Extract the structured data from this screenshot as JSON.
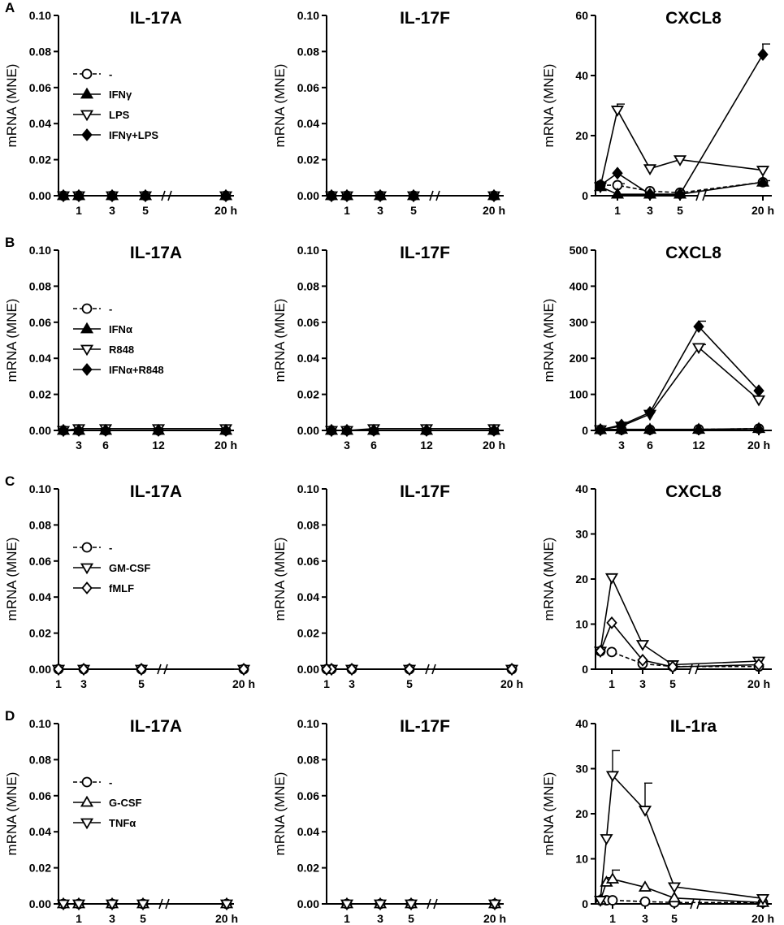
{
  "figure": {
    "rows": [
      {
        "label": "A",
        "legend": [
          "-",
          "IFNγ",
          "LPS",
          "IFNγ+LPS"
        ],
        "panels": [
          {
            "title": "IL-17A",
            "ylabel": "mRNA (MNE)",
            "yticks": [
              "0.00",
              "0.02",
              "0.04",
              "0.06",
              "0.08",
              "0.10"
            ],
            "xticks": [
              "1",
              "3",
              "5",
              "20 h"
            ]
          },
          {
            "title": "IL-17F",
            "ylabel": "mRNA (MNE)",
            "yticks": [
              "0.00",
              "0.02",
              "0.04",
              "0.06",
              "0.08",
              "0.10"
            ],
            "xticks": [
              "1",
              "3",
              "5",
              "20 h"
            ]
          },
          {
            "title": "CXCL8",
            "ylabel": "mRNA (MNE)",
            "yticks": [
              "0",
              "20",
              "40",
              "60"
            ],
            "xticks": [
              "1",
              "3",
              "5",
              "20 h"
            ]
          }
        ]
      },
      {
        "label": "B",
        "legend": [
          "-",
          "IFNα",
          "R848",
          "IFNα+R848"
        ],
        "panels": [
          {
            "title": "IL-17A",
            "ylabel": "mRNA (MNE)",
            "yticks": [
              "0.00",
              "0.02",
              "0.04",
              "0.06",
              "0.08",
              "0.10"
            ],
            "xticks": [
              "3",
              "6",
              "12",
              "20 h"
            ]
          },
          {
            "title": "IL-17F",
            "ylabel": "mRNA (MNE)",
            "yticks": [
              "0.00",
              "0.02",
              "0.04",
              "0.06",
              "0.08",
              "0.10"
            ],
            "xticks": [
              "3",
              "6",
              "12",
              "20 h"
            ]
          },
          {
            "title": "CXCL8",
            "ylabel": "mRNA (MNE)",
            "yticks": [
              "0",
              "100",
              "200",
              "300",
              "400",
              "500"
            ],
            "xticks": [
              "3",
              "6",
              "12",
              "20 h"
            ]
          }
        ]
      },
      {
        "label": "C",
        "legend": [
          "-",
          "GM-CSF",
          "fMLF"
        ],
        "panels": [
          {
            "title": "IL-17A",
            "ylabel": "mRNA (MNE)",
            "yticks": [
              "0.00",
              "0.02",
              "0.04",
              "0.06",
              "0.08",
              "0.10"
            ],
            "xticks": [
              "1",
              "3",
              "5",
              "20 h"
            ]
          },
          {
            "title": "IL-17F",
            "ylabel": "mRNA (MNE)",
            "yticks": [
              "0.00",
              "0.02",
              "0.04",
              "0.06",
              "0.08",
              "0.10"
            ],
            "xticks": [
              "1",
              "3",
              "5",
              "20 h"
            ]
          },
          {
            "title": "CXCL8",
            "ylabel": "mRNA (MNE)",
            "yticks": [
              "0",
              "10",
              "20",
              "30",
              "40"
            ],
            "xticks": [
              "1",
              "3",
              "5",
              "20 h"
            ]
          }
        ]
      },
      {
        "label": "D",
        "legend": [
          "-",
          "G-CSF",
          "TNFα"
        ],
        "panels": [
          {
            "title": "IL-17A",
            "ylabel": "mRNA (MNE)",
            "yticks": [
              "0.00",
              "0.02",
              "0.04",
              "0.06",
              "0.08",
              "0.10"
            ],
            "xticks": [
              "1",
              "3",
              "5",
              "20 h"
            ]
          },
          {
            "title": "IL-17F",
            "ylabel": "mRNA (MNE)",
            "yticks": [
              "0.00",
              "0.02",
              "0.04",
              "0.06",
              "0.08",
              "0.10"
            ],
            "xticks": [
              "1",
              "3",
              "5",
              "20 h"
            ]
          },
          {
            "title": "IL-1ra",
            "ylabel": "mRNA (MNE)",
            "yticks": [
              "0",
              "10",
              "20",
              "30",
              "40"
            ],
            "xticks": [
              "1",
              "3",
              "5",
              "20 h"
            ]
          }
        ]
      }
    ]
  },
  "chart_data": [
    {
      "type": "line",
      "id": "A-IL17A",
      "title": "IL-17A",
      "xlabel": "",
      "ylabel": "mRNA (MNE)",
      "ylim": [
        0,
        0.1
      ],
      "x": [
        0,
        1,
        3,
        5,
        20
      ],
      "axis_break": true,
      "series": [
        {
          "name": "-",
          "marker": "open-circle",
          "dashed": true,
          "values": [
            0,
            0,
            0,
            0,
            0
          ]
        },
        {
          "name": "IFNγ",
          "marker": "filled-triangle-up",
          "values": [
            0,
            0,
            0,
            0,
            0
          ]
        },
        {
          "name": "LPS",
          "marker": "open-triangle-down",
          "values": [
            0,
            0,
            0,
            0,
            0
          ]
        },
        {
          "name": "IFNγ+LPS",
          "marker": "filled-diamond",
          "values": [
            0,
            0,
            0,
            0,
            0
          ]
        }
      ]
    },
    {
      "type": "line",
      "id": "A-IL17F",
      "title": "IL-17F",
      "xlabel": "",
      "ylabel": "mRNA (MNE)",
      "ylim": [
        0,
        0.1
      ],
      "x": [
        0,
        1,
        3,
        5,
        20
      ],
      "axis_break": true,
      "series": [
        {
          "name": "-",
          "marker": "open-circle",
          "dashed": true,
          "values": [
            0,
            0,
            0,
            0,
            0
          ]
        },
        {
          "name": "IFNγ",
          "marker": "filled-triangle-up",
          "values": [
            0,
            0,
            0,
            0,
            0
          ]
        },
        {
          "name": "LPS",
          "marker": "open-triangle-down",
          "values": [
            0,
            0,
            0,
            0,
            0
          ]
        },
        {
          "name": "IFNγ+LPS",
          "marker": "filled-diamond",
          "values": [
            0,
            0,
            0,
            0,
            0
          ]
        }
      ]
    },
    {
      "type": "line",
      "id": "A-CXCL8",
      "title": "CXCL8",
      "xlabel": "",
      "ylabel": "mRNA (MNE)",
      "ylim": [
        0,
        60
      ],
      "x": [
        0,
        1,
        3,
        5,
        20
      ],
      "axis_break": true,
      "series": [
        {
          "name": "-",
          "marker": "open-circle",
          "dashed": true,
          "values": [
            3.5,
            3.5,
            1.5,
            1,
            4.5
          ],
          "err": [
            0,
            0.5,
            0,
            0,
            0.5
          ]
        },
        {
          "name": "IFNγ",
          "marker": "filled-triangle-up",
          "values": [
            3,
            0.5,
            0.5,
            0.5,
            4.5
          ]
        },
        {
          "name": "LPS",
          "marker": "open-triangle-down",
          "values": [
            3,
            28.5,
            9,
            12,
            8.5
          ],
          "err": [
            0,
            2,
            0,
            0,
            0
          ]
        },
        {
          "name": "IFNγ+LPS",
          "marker": "filled-diamond",
          "values": [
            3.5,
            7.5,
            0.5,
            0.5,
            47
          ],
          "err": [
            0,
            0,
            0,
            0,
            3.5
          ]
        }
      ]
    },
    {
      "type": "line",
      "id": "B-IL17A",
      "title": "IL-17A",
      "xlabel": "",
      "ylabel": "mRNA (MNE)",
      "ylim": [
        0,
        0.1
      ],
      "x": [
        0,
        3,
        6,
        12,
        20
      ],
      "series": [
        {
          "name": "-",
          "marker": "open-circle",
          "dashed": true,
          "values": [
            0,
            0,
            0,
            0,
            0
          ]
        },
        {
          "name": "IFNα",
          "marker": "filled-triangle-up",
          "values": [
            0,
            0,
            0,
            0,
            0
          ]
        },
        {
          "name": "R848",
          "marker": "open-triangle-down",
          "values": [
            0,
            0.001,
            0.001,
            0.001,
            0.001
          ]
        },
        {
          "name": "IFNα+R848",
          "marker": "filled-diamond",
          "values": [
            0,
            0,
            0,
            0,
            0
          ]
        }
      ]
    },
    {
      "type": "line",
      "id": "B-IL17F",
      "title": "IL-17F",
      "xlabel": "",
      "ylabel": "mRNA (MNE)",
      "ylim": [
        0,
        0.1
      ],
      "x": [
        0,
        3,
        6,
        12,
        20
      ],
      "series": [
        {
          "name": "-",
          "marker": "open-circle",
          "dashed": true,
          "values": [
            0,
            0,
            0,
            0,
            0
          ]
        },
        {
          "name": "IFNα",
          "marker": "filled-triangle-up",
          "values": [
            0,
            0,
            0,
            0,
            0
          ]
        },
        {
          "name": "R848",
          "marker": "open-triangle-down",
          "values": [
            0,
            0,
            0.001,
            0.001,
            0.001
          ]
        },
        {
          "name": "IFNα+R848",
          "marker": "filled-diamond",
          "values": [
            0,
            0,
            0,
            0,
            0
          ]
        }
      ]
    },
    {
      "type": "line",
      "id": "B-CXCL8",
      "title": "CXCL8",
      "xlabel": "",
      "ylabel": "mRNA (MNE)",
      "ylim": [
        0,
        500
      ],
      "x": [
        0,
        3,
        6,
        12,
        20
      ],
      "series": [
        {
          "name": "-",
          "marker": "open-circle",
          "dashed": true,
          "values": [
            2,
            2,
            2,
            3,
            5
          ]
        },
        {
          "name": "IFNα",
          "marker": "filled-triangle-up",
          "values": [
            2,
            3,
            3,
            3,
            5
          ]
        },
        {
          "name": "R848",
          "marker": "open-triangle-down",
          "values": [
            2,
            12,
            45,
            230,
            85
          ],
          "err": [
            0,
            0,
            0,
            8,
            0
          ]
        },
        {
          "name": "IFNα+R848",
          "marker": "filled-diamond",
          "values": [
            2,
            15,
            50,
            288,
            110
          ],
          "err": [
            0,
            0,
            0,
            15,
            0
          ]
        }
      ]
    },
    {
      "type": "line",
      "id": "C-IL17A",
      "title": "IL-17A",
      "xlabel": "",
      "ylabel": "mRNA (MNE)",
      "ylim": [
        0,
        0.1
      ],
      "x": [
        1,
        3,
        5,
        20
      ],
      "axis_break": true,
      "series": [
        {
          "name": "-",
          "marker": "open-circle",
          "dashed": true,
          "values": [
            0,
            0,
            0,
            0
          ]
        },
        {
          "name": "GM-CSF",
          "marker": "open-triangle-down",
          "values": [
            0,
            0,
            0,
            0
          ]
        },
        {
          "name": "fMLF",
          "marker": "open-diamond",
          "values": [
            0,
            0,
            0,
            0
          ]
        }
      ]
    },
    {
      "type": "line",
      "id": "C-IL17F",
      "title": "IL-17F",
      "xlabel": "",
      "ylabel": "mRNA (MNE)",
      "ylim": [
        0,
        0.1
      ],
      "x": [
        0,
        1,
        3,
        5,
        20
      ],
      "axis_break": true,
      "series": [
        {
          "name": "-",
          "marker": "open-circle",
          "dashed": true,
          "values": [
            0,
            0,
            0,
            0,
            0
          ]
        },
        {
          "name": "GM-CSF",
          "marker": "open-triangle-down",
          "values": [
            0,
            0,
            0,
            0,
            0
          ]
        },
        {
          "name": "fMLF",
          "marker": "open-diamond",
          "values": [
            0,
            0,
            0,
            0,
            0
          ]
        }
      ]
    },
    {
      "type": "line",
      "id": "C-CXCL8",
      "title": "CXCL8",
      "xlabel": "",
      "ylabel": "mRNA (MNE)",
      "ylim": [
        0,
        40
      ],
      "x": [
        0,
        1,
        3,
        5,
        20
      ],
      "axis_break": true,
      "series": [
        {
          "name": "-",
          "marker": "open-circle",
          "dashed": true,
          "values": [
            4,
            3.8,
            1.2,
            0.6,
            0.6
          ]
        },
        {
          "name": "GM-CSF",
          "marker": "open-triangle-down",
          "values": [
            4,
            20.3,
            5.5,
            1,
            1.8
          ]
        },
        {
          "name": "fMLF",
          "marker": "open-diamond",
          "values": [
            4,
            10.3,
            2,
            0.5,
            1
          ]
        }
      ]
    },
    {
      "type": "line",
      "id": "D-IL17A",
      "title": "IL-17A",
      "xlabel": "",
      "ylabel": "mRNA (MNE)",
      "ylim": [
        0,
        0.1
      ],
      "x": [
        0,
        1,
        3,
        5,
        20
      ],
      "axis_break": true,
      "series": [
        {
          "name": "-",
          "marker": "open-circle",
          "dashed": true,
          "values": [
            0,
            0,
            0,
            0,
            0
          ]
        },
        {
          "name": "G-CSF",
          "marker": "open-triangle-up",
          "values": [
            0,
            0,
            0,
            0,
            0
          ]
        },
        {
          "name": "TNFα",
          "marker": "open-triangle-down",
          "values": [
            0,
            0,
            0,
            0,
            0
          ]
        }
      ]
    },
    {
      "type": "line",
      "id": "D-IL17F",
      "title": "IL-17F",
      "xlabel": "",
      "ylabel": "mRNA (MNE)",
      "ylim": [
        0,
        0.1
      ],
      "x": [
        1,
        3,
        5,
        20
      ],
      "axis_break": true,
      "series": [
        {
          "name": "-",
          "marker": "open-circle",
          "dashed": true,
          "values": [
            0,
            0,
            0,
            0
          ]
        },
        {
          "name": "G-CSF",
          "marker": "open-triangle-up",
          "values": [
            0,
            0,
            0,
            0
          ]
        },
        {
          "name": "TNFα",
          "marker": "open-triangle-down",
          "values": [
            0,
            0,
            0,
            0
          ]
        }
      ]
    },
    {
      "type": "line",
      "id": "D-IL1ra",
      "title": "IL-1ra",
      "xlabel": "",
      "ylabel": "mRNA (MNE)",
      "ylim": [
        0,
        40
      ],
      "x": [
        0,
        0.5,
        1,
        3,
        5,
        20
      ],
      "axis_break": true,
      "series": [
        {
          "name": "-",
          "marker": "open-circle",
          "dashed": true,
          "values": [
            0.8,
            0.8,
            0.8,
            0.5,
            0.3,
            0.3
          ]
        },
        {
          "name": "G-CSF",
          "marker": "open-triangle-up",
          "values": [
            0.8,
            4.8,
            5.5,
            3.7,
            1.3,
            0.3
          ],
          "err": [
            0,
            1,
            2,
            0,
            0,
            0
          ]
        },
        {
          "name": "TNFα",
          "marker": "open-triangle-down",
          "values": [
            0.8,
            14.5,
            28.5,
            20.8,
            3.8,
            1.2
          ],
          "err": [
            0,
            0,
            5.5,
            6,
            0,
            0
          ]
        }
      ]
    }
  ]
}
